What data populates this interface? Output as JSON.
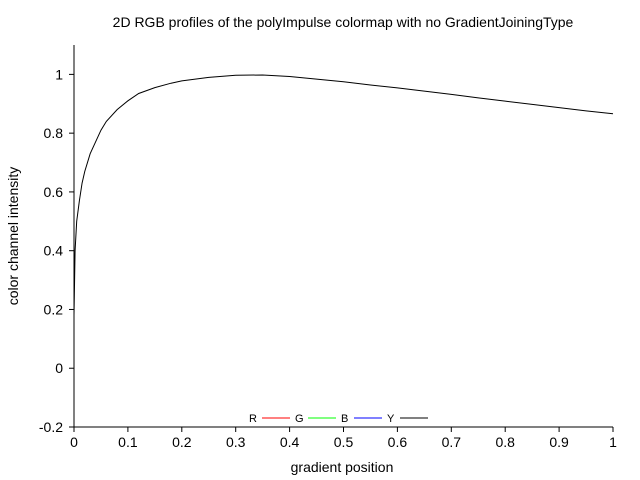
{
  "chart_data": {
    "type": "line",
    "title": "2D RGB profiles of the polyImpulse colormap with no GradientJoiningType",
    "xlabel": "gradient position",
    "ylabel": "color channel intensity",
    "xlim": [
      0,
      1
    ],
    "ylim": [
      -0.2,
      1.1
    ],
    "xticks": [
      0,
      0.1,
      0.2,
      0.3,
      0.4,
      0.5,
      0.6,
      0.7,
      0.8,
      0.9,
      1
    ],
    "xtick_labels": [
      "0",
      "0.1",
      "0.2",
      "0.3",
      "0.4",
      "0.5",
      "0.6",
      "0.7",
      "0.8",
      "0.9",
      "1"
    ],
    "yticks": [
      -0.2,
      0,
      0.2,
      0.4,
      0.6,
      0.8,
      1
    ],
    "ytick_labels": [
      "-0.2",
      "0",
      "0.2",
      "0.4",
      "0.6",
      "0.8",
      "1"
    ],
    "grid": false,
    "legend_position": "bottom-center",
    "series": [
      {
        "name": "R",
        "color": "#ff0000",
        "x": [],
        "y": []
      },
      {
        "name": "G",
        "color": "#00ff00",
        "x": [],
        "y": []
      },
      {
        "name": "B",
        "color": "#0000ff",
        "x": [],
        "y": []
      },
      {
        "name": "Y",
        "color": "#000000",
        "x": [
          0,
          0.002,
          0.005,
          0.01,
          0.015,
          0.02,
          0.03,
          0.04,
          0.05,
          0.06,
          0.08,
          0.1,
          0.12,
          0.15,
          0.18,
          0.2,
          0.25,
          0.3,
          0.35,
          0.4,
          0.45,
          0.5,
          0.55,
          0.6,
          0.65,
          0.7,
          0.75,
          0.8,
          0.85,
          0.9,
          0.95,
          1.0
        ],
        "y": [
          0.18,
          0.4,
          0.5,
          0.57,
          0.63,
          0.67,
          0.73,
          0.77,
          0.81,
          0.84,
          0.88,
          0.91,
          0.935,
          0.955,
          0.97,
          0.978,
          0.99,
          0.997,
          0.998,
          0.993,
          0.984,
          0.975,
          0.964,
          0.954,
          0.943,
          0.932,
          0.92,
          0.909,
          0.898,
          0.887,
          0.876,
          0.866
        ]
      }
    ]
  }
}
